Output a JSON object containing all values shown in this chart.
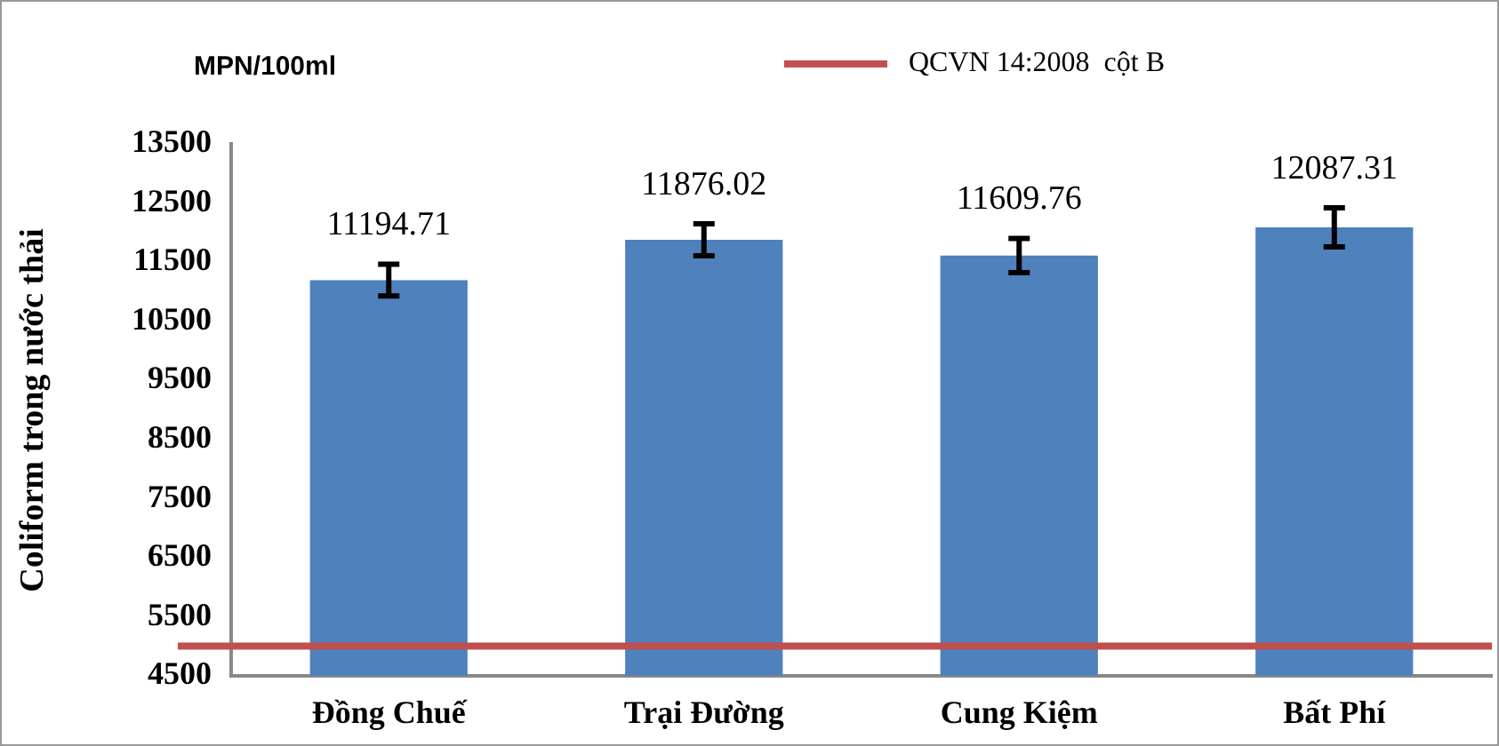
{
  "chart_data": {
    "type": "bar",
    "ylabel": "Coliform trong nước thải",
    "annotations": [
      "MPN/100ml",
      "QCVN 14:2008  cột B"
    ],
    "categories": [
      "Đồng Chuế",
      "Trại Đường",
      "Cung Kiệm",
      "Bất Phí"
    ],
    "values": [
      11194.71,
      11876.02,
      11609.76,
      12087.31
    ],
    "errors": [
      270,
      270,
      290,
      330
    ],
    "color": "#4f81bd",
    "data_labels": true,
    "ylim": [
      4500,
      13500
    ],
    "yticks": [
      4500,
      5500,
      6500,
      7500,
      8500,
      9500,
      10500,
      11500,
      12500,
      13500
    ],
    "grid": false,
    "ref_lines": [
      {
        "axis": "y",
        "value": 5000,
        "color": "#c0504d"
      }
    ]
  }
}
